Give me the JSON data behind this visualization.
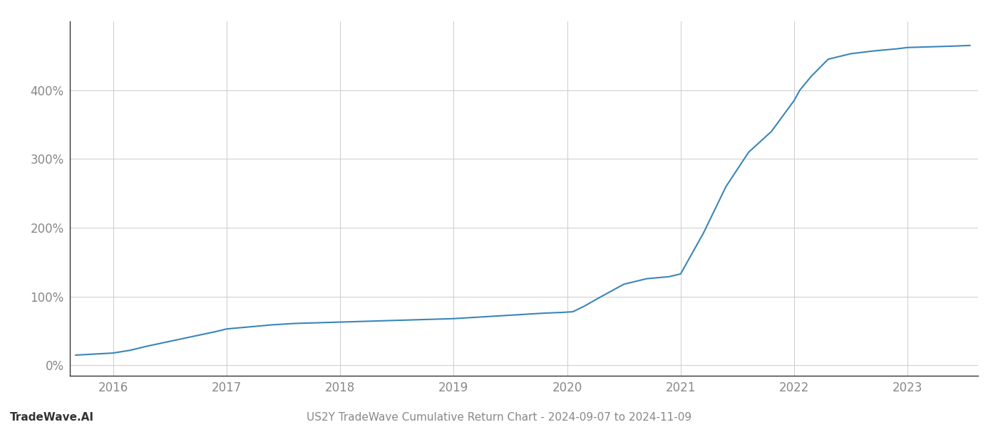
{
  "title": "US2Y TradeWave Cumulative Return Chart - 2024-09-07 to 2024-11-09",
  "watermark": "TradeWave.AI",
  "line_color": "#3a86b8",
  "background_color": "#ffffff",
  "grid_color": "#cccccc",
  "x_years": [
    2016,
    2017,
    2018,
    2019,
    2020,
    2021,
    2022,
    2023
  ],
  "xlim": [
    2015.62,
    2023.62
  ],
  "ylim": [
    -15,
    500
  ],
  "yticks": [
    0,
    100,
    200,
    300,
    400
  ],
  "x_data": [
    2015.67,
    2016.0,
    2016.15,
    2016.3,
    2016.5,
    2016.7,
    2016.9,
    2017.0,
    2017.2,
    2017.4,
    2017.6,
    2017.8,
    2018.0,
    2018.2,
    2018.4,
    2018.6,
    2018.8,
    2019.0,
    2019.2,
    2019.4,
    2019.6,
    2019.8,
    2019.95,
    2020.05,
    2020.15,
    2020.3,
    2020.5,
    2020.7,
    2020.9,
    2021.0,
    2021.2,
    2021.4,
    2021.6,
    2021.8,
    2022.0,
    2022.05,
    2022.15,
    2022.3,
    2022.5,
    2022.7,
    2022.9,
    2023.0,
    2023.2,
    2023.4,
    2023.55
  ],
  "y_data": [
    15,
    18,
    22,
    28,
    35,
    42,
    49,
    53,
    56,
    59,
    61,
    62,
    63,
    64,
    65,
    66,
    67,
    68,
    70,
    72,
    74,
    76,
    77,
    78,
    86,
    100,
    118,
    126,
    129,
    133,
    192,
    260,
    310,
    340,
    385,
    400,
    420,
    445,
    453,
    457,
    460,
    462,
    463,
    464,
    465
  ],
  "line_width": 1.5,
  "title_fontsize": 11,
  "watermark_fontsize": 11,
  "tick_fontsize": 12,
  "tick_color": "#888888",
  "spine_color": "#333333"
}
